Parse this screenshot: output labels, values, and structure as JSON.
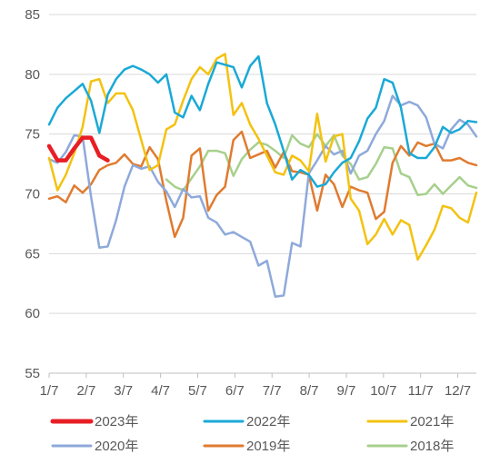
{
  "chart_data": {
    "type": "line",
    "ylim": [
      55,
      85
    ],
    "yticks": [
      55,
      60,
      65,
      70,
      75,
      80,
      85
    ],
    "x_ticks": [
      "1/7",
      "2/7",
      "3/7",
      "4/7",
      "5/7",
      "6/7",
      "7/7",
      "8/7",
      "9/7",
      "10/7",
      "11/7",
      "12/7"
    ],
    "grid": "horizontal",
    "legend_position": "bottom",
    "series": [
      {
        "name": "2023年",
        "color": "#E81E25",
        "values": [
          74.0,
          72.8,
          72.8,
          73.8,
          74.7,
          74.7,
          73.2,
          72.8
        ]
      },
      {
        "name": "2022年",
        "color": "#1AA9D6",
        "values": [
          75.8,
          77.2,
          78.0,
          78.6,
          79.2,
          77.8,
          75.1,
          78.3,
          79.6,
          80.4,
          80.7,
          80.4,
          80.0,
          79.3,
          80.0,
          76.8,
          76.4,
          78.2,
          77.0,
          79.2,
          81.0,
          80.8,
          80.6,
          78.9,
          80.7,
          81.5,
          77.6,
          75.8,
          73.6,
          71.2,
          72.0,
          71.6,
          70.6,
          70.8,
          71.8,
          72.6,
          73.0,
          74.4,
          76.3,
          77.2,
          79.6,
          79.3,
          77.2,
          73.4,
          73.0,
          73.0,
          73.9,
          75.6,
          75.1,
          75.4,
          76.1,
          76.0
        ]
      },
      {
        "name": "2021年",
        "color": "#F3C211",
        "values": [
          73.0,
          70.3,
          71.6,
          73.4,
          75.6,
          79.4,
          79.6,
          77.6,
          78.4,
          78.4,
          77.0,
          74.5,
          72.0,
          72.4,
          75.4,
          75.8,
          77.8,
          79.6,
          80.6,
          80.0,
          81.3,
          81.7,
          76.6,
          77.6,
          75.8,
          74.6,
          73.2,
          71.8,
          71.6,
          73.2,
          72.8,
          71.9,
          76.7,
          72.7,
          74.8,
          75.0,
          69.6,
          68.6,
          65.8,
          66.6,
          67.9,
          66.6,
          67.8,
          67.4,
          64.5,
          65.7,
          67.0,
          69.0,
          68.8,
          68.0,
          67.6,
          70.1
        ]
      },
      {
        "name": "2020年",
        "color": "#8EA9DB",
        "values": [
          72.9,
          72.6,
          73.5,
          74.9,
          74.8,
          69.8,
          65.5,
          65.6,
          67.8,
          70.6,
          72.4,
          72.1,
          72.3,
          71.0,
          70.2,
          68.9,
          70.4,
          69.7,
          69.8,
          68.0,
          67.6,
          66.6,
          66.8,
          66.4,
          66.0,
          64.0,
          64.4,
          61.4,
          61.5,
          65.9,
          65.6,
          71.7,
          72.8,
          74.0,
          73.3,
          73.6,
          71.7,
          73.2,
          73.6,
          75.0,
          76.1,
          78.2,
          77.4,
          77.7,
          77.4,
          76.4,
          74.2,
          73.8,
          75.4,
          76.2,
          75.8,
          74.8
        ]
      },
      {
        "name": "2019年",
        "color": "#E07B30",
        "values": [
          69.6,
          69.8,
          69.3,
          70.7,
          70.1,
          70.8,
          72.0,
          72.4,
          72.6,
          73.3,
          72.5,
          72.3,
          73.9,
          72.9,
          69.4,
          66.4,
          68.0,
          73.2,
          73.8,
          68.6,
          69.9,
          70.6,
          74.5,
          75.2,
          73.0,
          73.3,
          73.6,
          72.2,
          73.5,
          71.9,
          71.8,
          71.6,
          68.6,
          71.6,
          70.8,
          68.9,
          70.6,
          70.3,
          70.1,
          67.9,
          68.5,
          72.6,
          74.0,
          73.2,
          74.3,
          74.0,
          74.2,
          72.8,
          72.8,
          73.0,
          72.6,
          72.4
        ]
      },
      {
        "name": "2018年",
        "color": "#A7D08C",
        "values": [
          null,
          null,
          null,
          null,
          null,
          null,
          null,
          null,
          null,
          null,
          null,
          null,
          null,
          null,
          71.2,
          70.6,
          70.3,
          71.3,
          72.3,
          73.6,
          73.6,
          73.4,
          71.5,
          72.9,
          73.7,
          74.3,
          74.1,
          73.6,
          73.0,
          74.9,
          74.2,
          73.9,
          75.0,
          74.0,
          74.9,
          73.2,
          72.5,
          71.2,
          71.4,
          72.5,
          73.9,
          73.8,
          71.7,
          71.4,
          69.9,
          70.0,
          70.8,
          70.0,
          70.7,
          71.4,
          70.7,
          70.5
        ]
      }
    ]
  }
}
